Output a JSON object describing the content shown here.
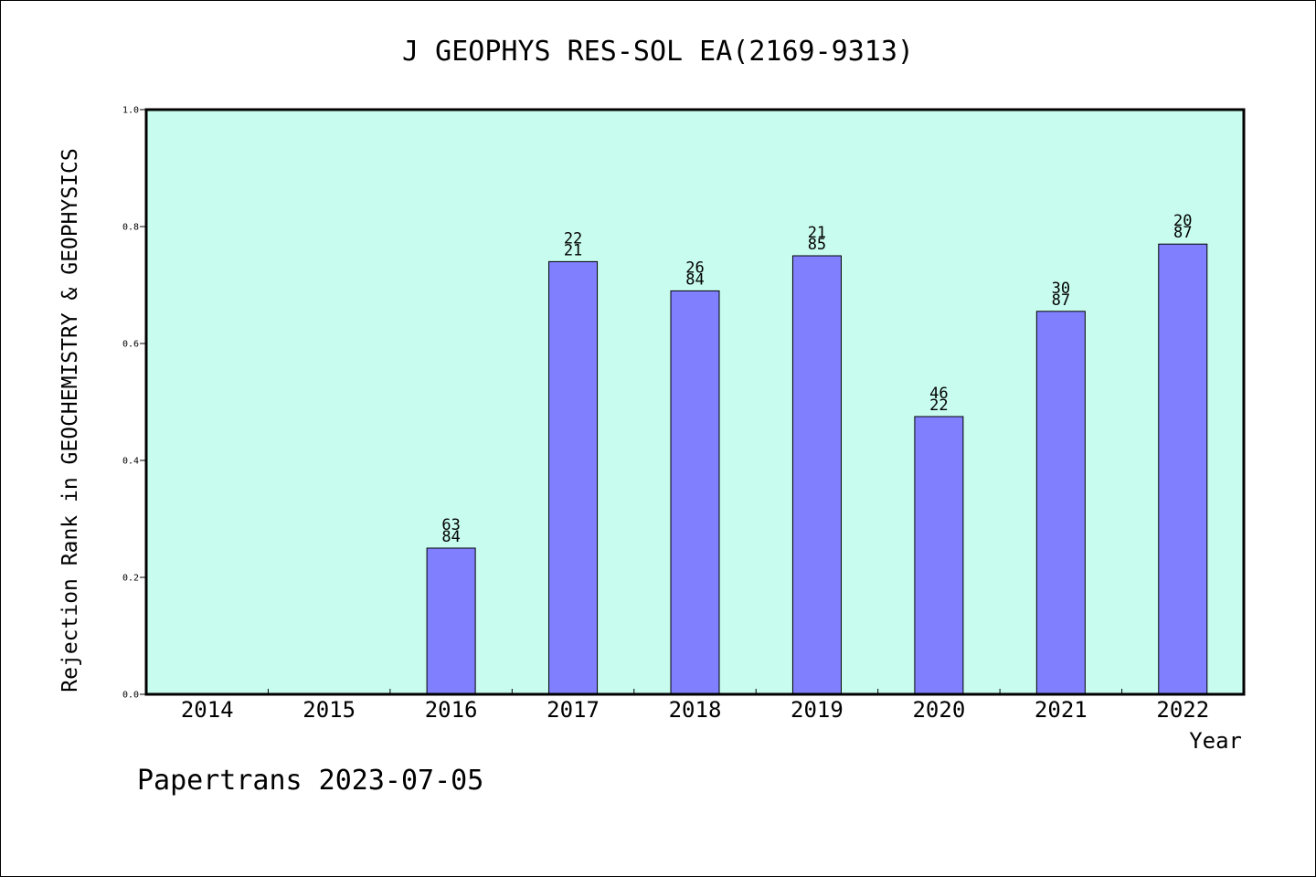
{
  "chart_data": {
    "type": "bar",
    "title": "J GEOPHYS RES-SOL EA(2169-9313)",
    "xlabel": "Year",
    "ylabel": "Rejection Rank in GEOCHEMISTRY & GEOPHYSICS",
    "ylim": [
      0,
      1.0
    ],
    "yticks": [
      "0.0",
      "0.2",
      "0.4",
      "0.6",
      "0.8",
      "1.0"
    ],
    "categories": [
      "2014",
      "2015",
      "2016",
      "2017",
      "2018",
      "2019",
      "2020",
      "2021",
      "2022"
    ],
    "values": [
      null,
      null,
      0.25,
      0.74,
      0.69,
      0.75,
      0.475,
      0.655,
      0.77
    ],
    "labels": [
      null,
      null,
      [
        "63",
        "84"
      ],
      [
        "22",
        "21"
      ],
      [
        "26",
        "84"
      ],
      [
        "21",
        "85"
      ],
      [
        "46",
        "22"
      ],
      [
        "30",
        "87"
      ],
      [
        "20",
        "87"
      ]
    ],
    "colors": {
      "plot_bg": "#c8fcee",
      "bar": "#8080ff",
      "bar_edge": "#000000"
    }
  },
  "footer": "Papertrans 2023-07-05"
}
